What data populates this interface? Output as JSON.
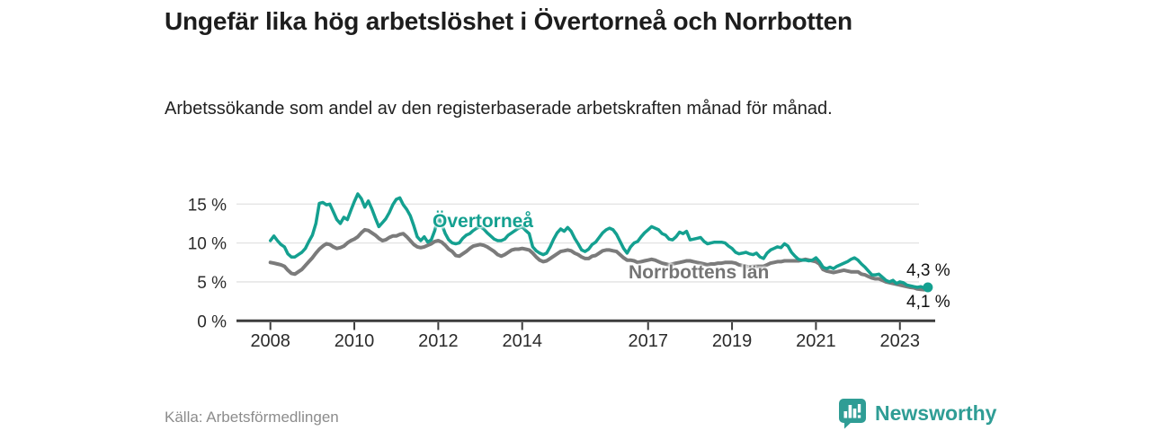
{
  "page": {
    "title": "Ungefär lika hög arbetslöshet i Övertorneå och Norrbotten",
    "subtitle": "Arbetssökande som andel av den registerbaserade arbetskraften månad för månad.",
    "source": "Källa: Arbetsförmedlingen",
    "brand": "Newsworthy"
  },
  "icons": {
    "brand_logo": "speech-bubble-bar-chart-icon"
  },
  "colors": {
    "overtornea_teal": "#14a090",
    "norrbotten_gray": "#7b7b7b",
    "axis": "#3d3d3d",
    "grid": "#e2e2e2",
    "tick_text": "#2b2b2b",
    "brand_teal": "#2f9d95",
    "title_text": "#1d1d1d",
    "muted_text": "#8c8c8c"
  },
  "chart_data": {
    "type": "line",
    "title": "Ungefär lika hög arbetslöshet i Övertorneå och Norrbotten",
    "subtitle": "Arbetssökande som andel av den registerbaserade arbetskraften månad för månad.",
    "unit": "%",
    "x_start_year": 2008,
    "x_step_months": 1,
    "x_end_label_period": "sep 2023",
    "ylim": [
      0,
      17
    ],
    "grid": "horizontal",
    "legend_position": "inline-labels",
    "x_axis": {
      "ticks": [
        "2008",
        "2010",
        "2012",
        "2014",
        "2017",
        "2019",
        "2021",
        "2023"
      ]
    },
    "y_axis": {
      "ticks": [
        {
          "label": "0 %",
          "value": 0
        },
        {
          "label": "5 %",
          "value": 5
        },
        {
          "label": "10 %",
          "value": 10
        },
        {
          "label": "15 %",
          "value": 15
        }
      ]
    },
    "series": [
      {
        "name": "Övertorneå",
        "color": "#14a090",
        "end_label": "4,3 %",
        "end_value": 4.3,
        "values": [
          10.3,
          10.9,
          10.3,
          9.8,
          9.5,
          8.6,
          8.2,
          8.2,
          8.5,
          8.8,
          9.3,
          10.2,
          11.0,
          12.5,
          15.1,
          15.2,
          14.9,
          15.0,
          14.0,
          13.0,
          12.5,
          13.3,
          13.0,
          14.2,
          15.3,
          16.3,
          15.7,
          14.6,
          15.4,
          14.4,
          13.2,
          12.1,
          12.6,
          13.1,
          13.9,
          14.9,
          15.6,
          15.8,
          14.9,
          14.3,
          13.5,
          12.2,
          10.8,
          10.3,
          10.8,
          10.1,
          10.4,
          11.6,
          13.3,
          12.4,
          11.2,
          10.4,
          10.0,
          9.9,
          10.0,
          10.6,
          11.0,
          11.2,
          11.6,
          11.9,
          12.1,
          11.8,
          11.3,
          10.9,
          10.5,
          10.3,
          10.3,
          10.5,
          11.0,
          11.3,
          11.6,
          11.9,
          12.1,
          11.6,
          11.2,
          9.5,
          9.0,
          8.7,
          8.5,
          8.7,
          9.5,
          10.5,
          11.3,
          11.8,
          11.5,
          12.0,
          11.5,
          10.6,
          9.9,
          9.1,
          8.9,
          9.2,
          9.8,
          10.1,
          10.7,
          11.3,
          11.7,
          11.9,
          11.7,
          11.1,
          10.2,
          9.3,
          8.7,
          9.5,
          10.0,
          10.2,
          10.8,
          11.3,
          11.7,
          12.1,
          11.9,
          11.7,
          11.2,
          11.0,
          10.5,
          10.4,
          10.8,
          11.4,
          11.2,
          11.5,
          10.4,
          10.5,
          10.6,
          10.7,
          10.2,
          9.9,
          10.0,
          10.1,
          10.1,
          10.1,
          10.0,
          9.6,
          9.3,
          8.8,
          8.6,
          8.7,
          8.8,
          8.6,
          8.5,
          8.7,
          8.2,
          8.0,
          8.7,
          9.1,
          9.3,
          9.5,
          9.4,
          9.9,
          9.6,
          8.8,
          8.3,
          7.9,
          7.8,
          7.8,
          7.7,
          7.8,
          8.1,
          7.6,
          6.9,
          6.7,
          6.9,
          6.7,
          7.0,
          7.2,
          7.4,
          7.6,
          7.9,
          8.1,
          7.8,
          7.3,
          6.9,
          6.4,
          5.9,
          5.9,
          6.0,
          5.6,
          5.2,
          5.0,
          5.2,
          4.8,
          5.0,
          4.9,
          4.6,
          4.5,
          4.4,
          4.3,
          4.4,
          4.2,
          4.3
        ]
      },
      {
        "name": "Norrbottens län",
        "color": "#7b7b7b",
        "end_label": "4,1 %",
        "end_value": 4.1,
        "values": [
          7.5,
          7.4,
          7.3,
          7.2,
          7.0,
          6.5,
          6.1,
          6.0,
          6.3,
          6.6,
          7.1,
          7.6,
          8.1,
          8.7,
          9.2,
          9.6,
          9.9,
          9.8,
          9.5,
          9.3,
          9.4,
          9.6,
          10.0,
          10.3,
          10.5,
          10.8,
          11.3,
          11.7,
          11.6,
          11.3,
          11.0,
          10.6,
          10.3,
          10.4,
          10.7,
          10.9,
          10.9,
          11.1,
          11.2,
          10.8,
          10.3,
          9.8,
          9.5,
          9.4,
          9.5,
          9.7,
          9.9,
          10.2,
          10.3,
          10.1,
          9.7,
          9.2,
          8.9,
          8.4,
          8.3,
          8.6,
          8.9,
          9.3,
          9.6,
          9.7,
          9.8,
          9.7,
          9.5,
          9.2,
          8.9,
          8.5,
          8.3,
          8.5,
          8.8,
          9.1,
          9.2,
          9.2,
          9.3,
          9.2,
          9.1,
          8.7,
          8.2,
          7.8,
          7.6,
          7.7,
          8.0,
          8.3,
          8.6,
          8.9,
          9.0,
          9.1,
          9.0,
          8.7,
          8.5,
          8.2,
          8.0,
          8.0,
          8.3,
          8.4,
          8.7,
          9.0,
          9.1,
          9.1,
          9.0,
          8.9,
          8.5,
          8.1,
          7.8,
          7.8,
          7.7,
          7.5,
          7.6,
          7.7,
          7.8,
          7.9,
          7.8,
          7.6,
          7.4,
          7.3,
          7.2,
          7.3,
          7.4,
          7.5,
          7.6,
          7.7,
          7.7,
          7.6,
          7.5,
          7.4,
          7.3,
          7.2,
          7.3,
          7.3,
          7.4,
          7.4,
          7.5,
          7.5,
          7.5,
          7.4,
          7.2,
          7.1,
          7.0,
          6.9,
          7.0,
          7.0,
          7.0,
          7.0,
          7.2,
          7.4,
          7.5,
          7.6,
          7.6,
          7.7,
          7.7,
          7.7,
          7.7,
          7.7,
          7.8,
          7.9,
          7.8,
          7.7,
          7.6,
          7.3,
          6.6,
          6.4,
          6.3,
          6.2,
          6.3,
          6.4,
          6.5,
          6.4,
          6.3,
          6.3,
          6.3,
          6.0,
          5.9,
          5.7,
          5.5,
          5.4,
          5.4,
          5.2,
          5.0,
          4.9,
          4.8,
          4.7,
          4.6,
          4.5,
          4.4,
          4.3,
          4.25,
          4.1,
          4.05,
          4.0,
          4.1
        ]
      }
    ]
  }
}
